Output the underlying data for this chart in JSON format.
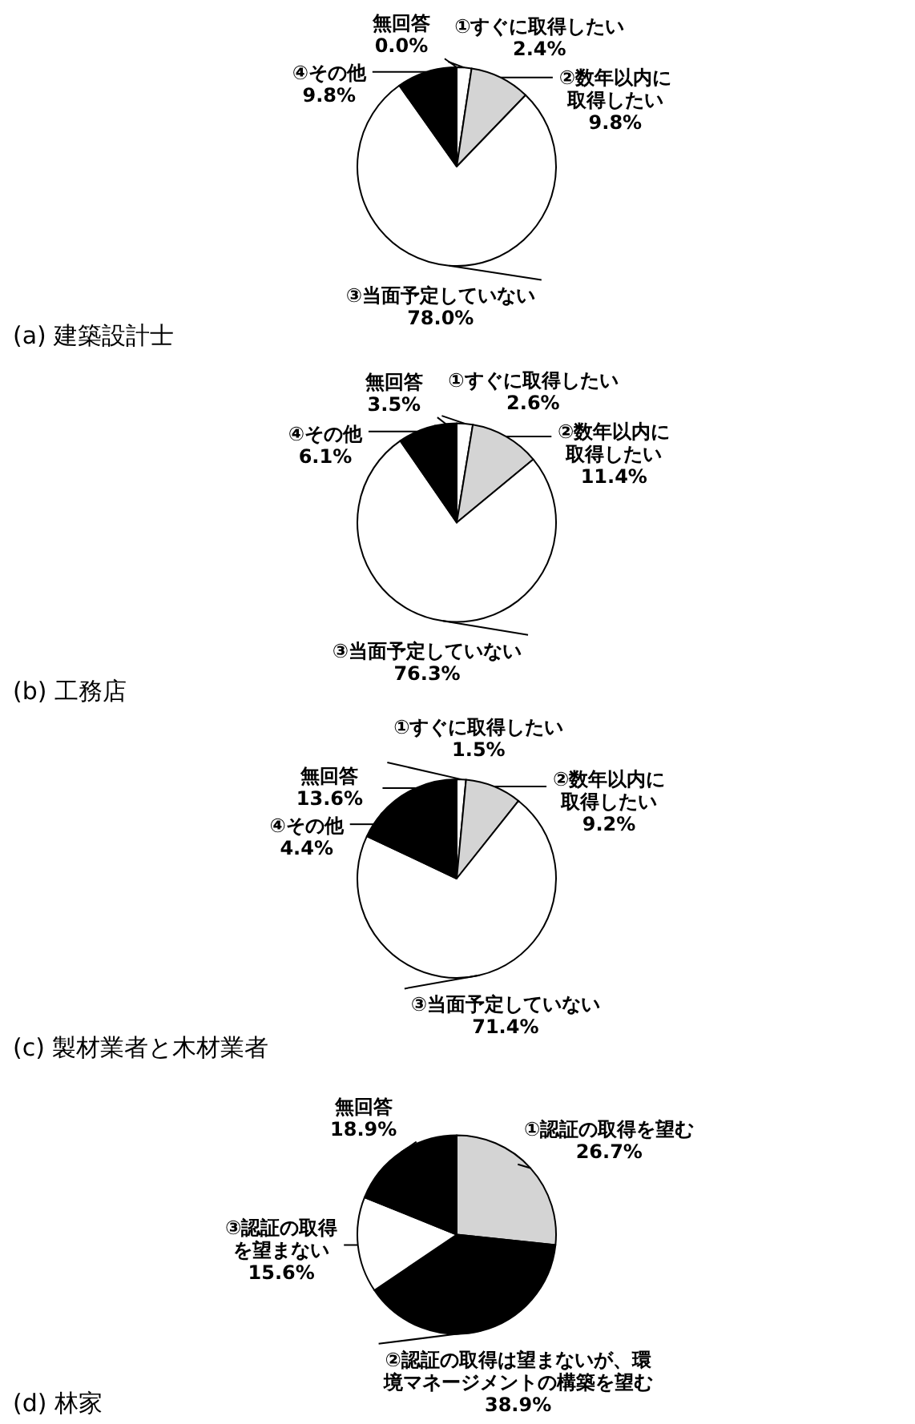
{
  "chart_data": [
    {
      "type": "pie",
      "title": "(a)  建築設計士",
      "categories": [
        "①すぐに取得したい",
        "②数年以内に取得したい",
        "③当面予定していない",
        "④その他",
        "無回答"
      ],
      "values": [
        2.4,
        9.8,
        78.0,
        9.8,
        0.0
      ],
      "value_labels": [
        "2.4%",
        "9.8%",
        "78.0%",
        "9.8%",
        "0.0%"
      ],
      "colors": [
        "#ffffff",
        "#d4d4d4",
        "#ffffff",
        "#000000",
        "#000000"
      ]
    },
    {
      "type": "pie",
      "title": "(b)  工務店",
      "categories": [
        "①すぐに取得したい",
        "②数年以内に取得したい",
        "③当面予定していない",
        "④その他",
        "無回答"
      ],
      "values": [
        2.6,
        11.4,
        76.3,
        6.1,
        3.5
      ],
      "value_labels": [
        "2.6%",
        "11.4%",
        "76.3%",
        "6.1%",
        "3.5%"
      ],
      "colors": [
        "#ffffff",
        "#d4d4d4",
        "#ffffff",
        "#000000",
        "#000000"
      ]
    },
    {
      "type": "pie",
      "title": "(c)  製材業者と木材業者",
      "categories": [
        "①すぐに取得したい",
        "②数年以内に取得したい",
        "③当面予定していない",
        "④その他",
        "無回答"
      ],
      "values": [
        1.5,
        9.2,
        71.4,
        4.4,
        13.6
      ],
      "value_labels": [
        "1.5%",
        "9.2%",
        "71.4%",
        "4.4%",
        "13.6%"
      ],
      "colors": [
        "#ffffff",
        "#d4d4d4",
        "#ffffff",
        "#000000",
        "#000000"
      ]
    },
    {
      "type": "pie",
      "title": "(d)  林家",
      "categories": [
        "①認証の取得を望む",
        "②認証の取得は望まないが、環境マネージメントの構築を望む",
        "③認証の取得を望まない",
        "無回答"
      ],
      "values": [
        26.7,
        38.9,
        15.6,
        18.9
      ],
      "value_labels": [
        "26.7%",
        "38.9%",
        "15.6%",
        "18.9%"
      ],
      "colors": [
        "#d4d4d4",
        "#000000",
        "#ffffff",
        "#000000"
      ]
    }
  ]
}
